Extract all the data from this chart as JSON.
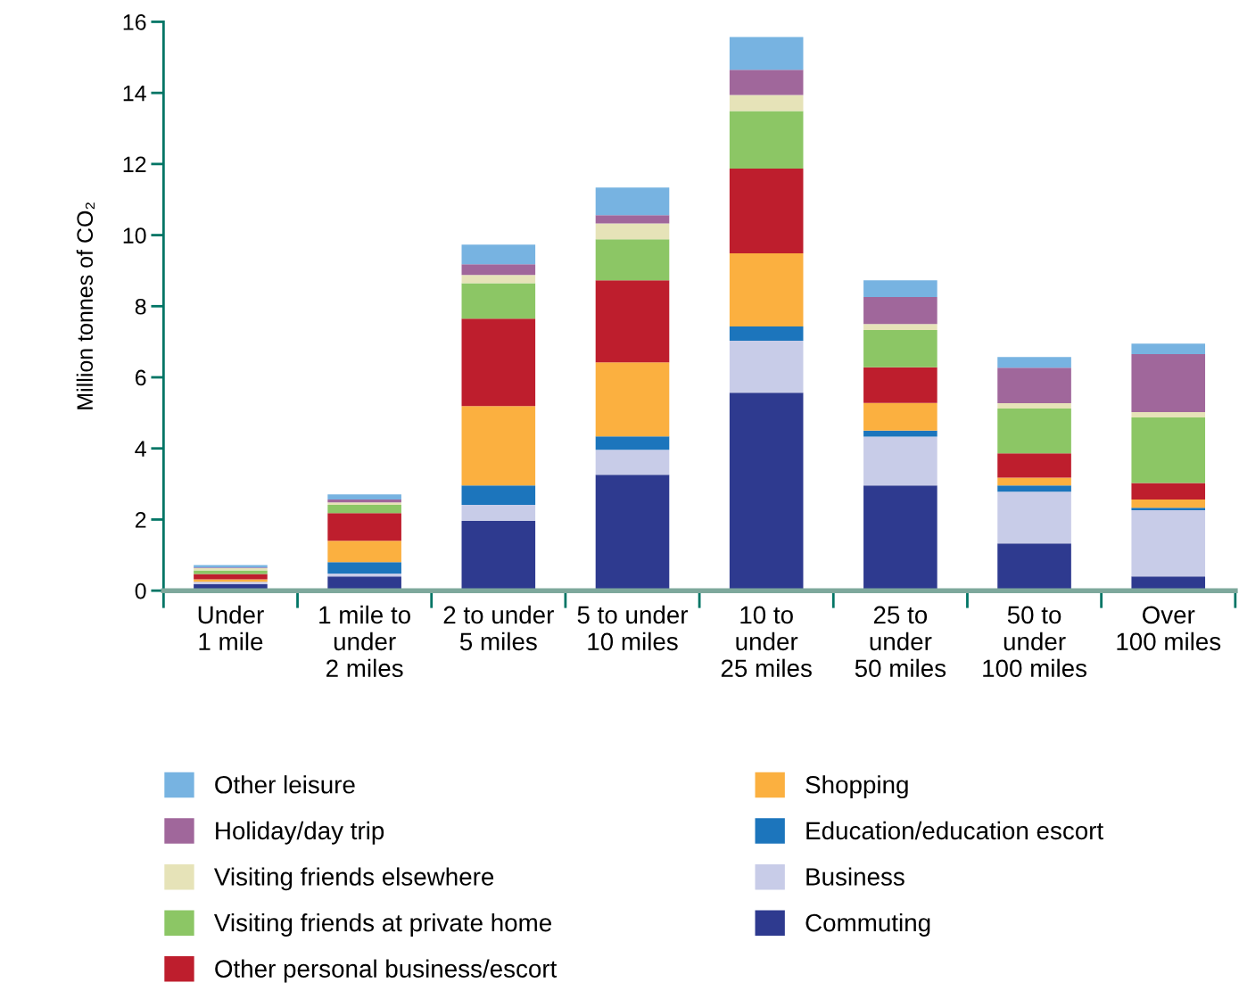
{
  "chart_data": {
    "type": "bar",
    "stacked": true,
    "ylabel": "Million tonnes of CO₂",
    "categories": [
      "Under\n1 mile",
      "1 mile to\nunder\n2 miles",
      "2 to under\n5 miles",
      "5 to under\n10 miles",
      "10 to\nunder\n25 miles",
      "25 to\nunder\n50 miles",
      "50 to\nunder\n100 miles",
      "Over\n100 miles"
    ],
    "series": [
      {
        "name": "Commuting",
        "color": "#2e3a8f",
        "values": [
          0.18,
          0.4,
          1.96,
          3.26,
          5.57,
          2.96,
          1.33,
          0.4
        ]
      },
      {
        "name": "Business",
        "color": "#c8cce8",
        "values": [
          0.07,
          0.08,
          0.45,
          0.7,
          1.46,
          1.37,
          1.45,
          1.86
        ]
      },
      {
        "name": "Education/education escort",
        "color": "#1c75bc",
        "values": [
          null,
          0.32,
          0.55,
          0.38,
          0.4,
          0.17,
          0.18,
          0.07
        ]
      },
      {
        "name": "Shopping",
        "color": "#fbb040",
        "values": [
          0.07,
          0.6,
          2.23,
          2.08,
          2.06,
          0.78,
          0.22,
          0.23
        ]
      },
      {
        "name": "Other personal business/escort",
        "color": "#be1e2d",
        "values": [
          0.15,
          0.78,
          2.46,
          2.31,
          2.38,
          1.0,
          0.68,
          0.47
        ]
      },
      {
        "name": "Visiting friends at private home",
        "color": "#8cc665",
        "values": [
          0.1,
          0.23,
          1.0,
          1.15,
          1.62,
          1.05,
          1.26,
          1.84
        ]
      },
      {
        "name": "Visiting friends elsewhere",
        "color": "#e6e3b8",
        "values": [
          0.06,
          0.07,
          0.23,
          0.45,
          0.45,
          0.17,
          0.15,
          0.15
        ]
      },
      {
        "name": "Holiday/day trip",
        "color": "#a0679b",
        "values": [
          0.02,
          0.08,
          0.3,
          0.23,
          0.71,
          0.76,
          1.0,
          1.63
        ]
      },
      {
        "name": "Other leisure",
        "color": "#77b3e1",
        "values": [
          0.07,
          0.15,
          0.55,
          0.78,
          0.92,
          0.47,
          0.3,
          0.3
        ]
      }
    ],
    "ylim": [
      0,
      16
    ],
    "yticks": [
      0,
      2,
      4,
      6,
      8,
      10,
      12,
      14,
      16
    ],
    "grid": false,
    "legend": "bottom"
  }
}
